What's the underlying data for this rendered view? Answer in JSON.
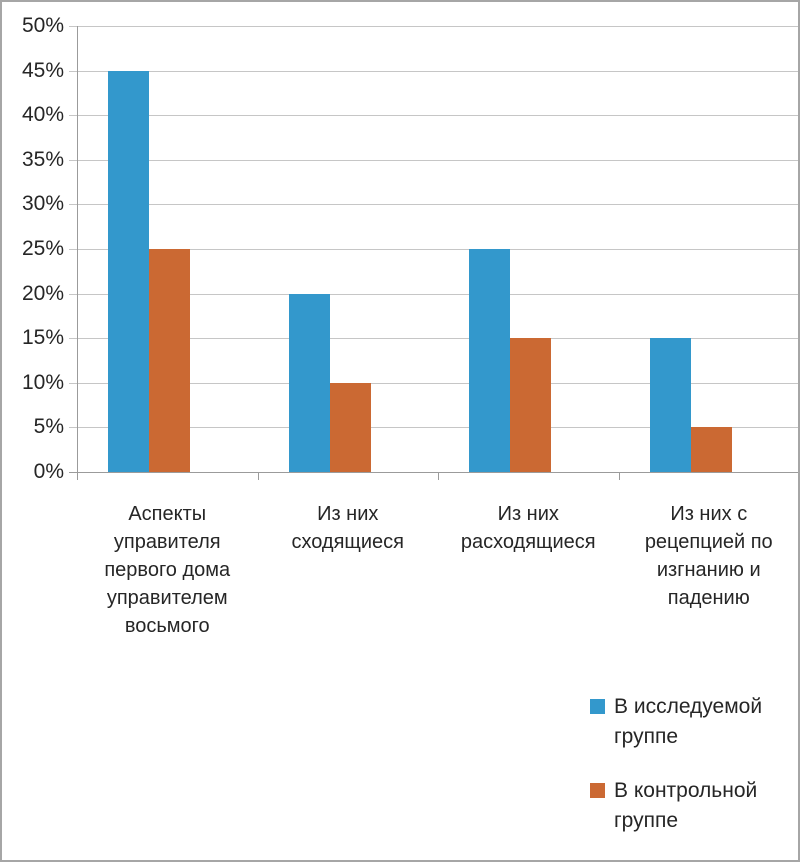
{
  "chart_data": {
    "type": "bar",
    "title": "",
    "categories": [
      "Аспекты управителя первого дома управителем восьмого",
      "Из них сходящиеся",
      "Из них расходящиеся",
      "Из них с рецепцией по изгнанию и падению"
    ],
    "series": [
      {
        "name": "В исследуемой группе",
        "color": "#3398CC",
        "values": [
          45,
          20,
          25,
          15
        ]
      },
      {
        "name": "В контрольной группе",
        "color": "#CB6933",
        "values": [
          25,
          10,
          15,
          5
        ]
      }
    ],
    "ylim": [
      0,
      50
    ],
    "ytick_step": 5,
    "ytick_labels": [
      "0%",
      "5%",
      "10%",
      "15%",
      "20%",
      "25%",
      "30%",
      "35%",
      "40%",
      "45%",
      "50%"
    ],
    "grid": true,
    "legend_position": "bottom-right"
  },
  "style_colors": {
    "background": "#FFFFFF",
    "border": "#A6A6A6",
    "gridline": "#C6C6C6",
    "axis": "#9B9B9B",
    "text": "#262626",
    "series1": "#3398CC",
    "series2": "#CB6933"
  }
}
